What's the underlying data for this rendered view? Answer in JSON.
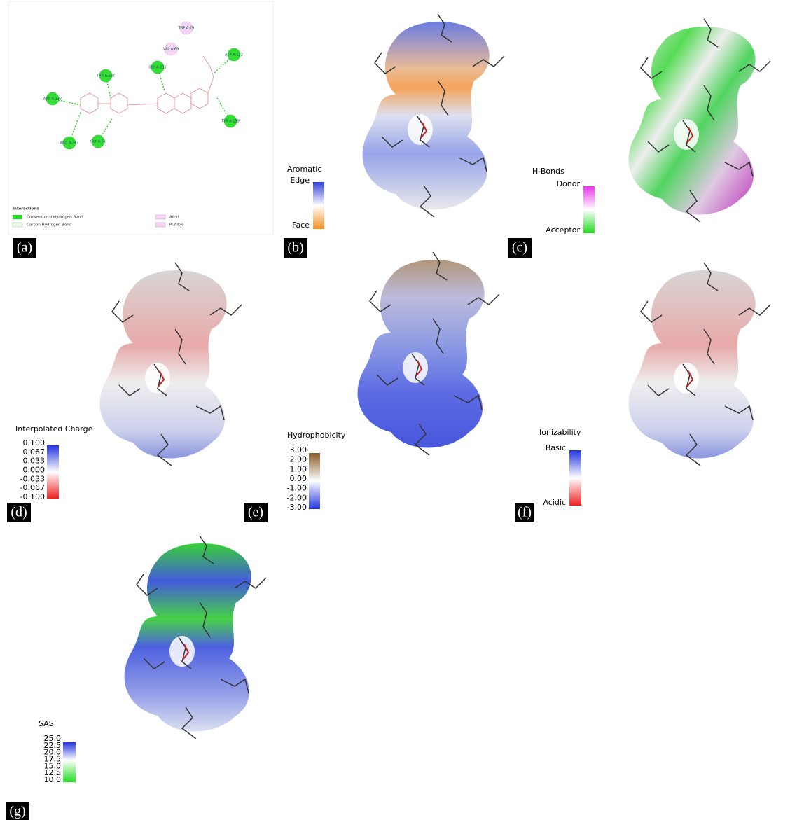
{
  "panels": {
    "a": {
      "label": "(a)",
      "residues": [
        "ASN A:237",
        "THR A:237",
        "GLY A:235",
        "TRP A:79",
        "VAL A:69",
        "ASP A:122",
        "TYR A:159",
        "ARG A:267",
        "GLY A:61"
      ],
      "legend": {
        "title": "Interactions",
        "items": [
          "Conventional Hydrogen Bond",
          "Carbon Hydrogen Bond",
          "Alkyl",
          "Pi-Alkyl"
        ]
      }
    },
    "b": {
      "label": "(b)",
      "legend_title": "Aromatic",
      "top": "Edge",
      "bottom": "Face"
    },
    "c": {
      "label": "(c)",
      "legend_title": "H-Bonds",
      "top": "Donor",
      "bottom": "Acceptor"
    },
    "d": {
      "label": "(d)",
      "legend_title": "Interpolated Charge",
      "ticks": [
        "0.100",
        "0.067",
        "0.033",
        "0.000",
        "-0.033",
        "-0.067",
        "-0.100"
      ]
    },
    "e": {
      "label": "(e)",
      "legend_title": "Hydrophobicity",
      "ticks": [
        "3.00",
        "2.00",
        "1.00",
        "0.00",
        "-1.00",
        "-2.00",
        "-3.00"
      ]
    },
    "f": {
      "label": "(f)",
      "legend_title": "Ionizability",
      "top": "Basic",
      "bottom": "Acidic"
    },
    "g": {
      "label": "(g)",
      "legend_title": "SAS",
      "ticks": [
        "25.0",
        "22.5",
        "20.0",
        "17.5",
        "15.0",
        "12.5",
        "10.0"
      ]
    }
  }
}
